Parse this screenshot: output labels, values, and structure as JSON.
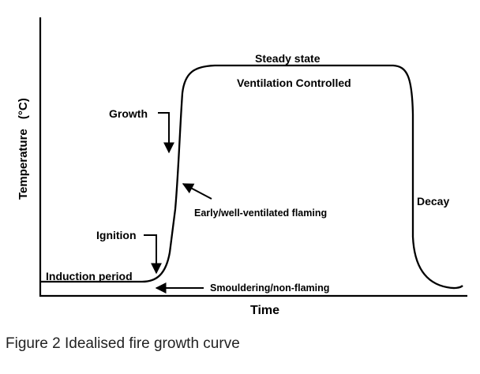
{
  "diagram": {
    "axes": {
      "y_label": "Temperature",
      "y_unit": "(°C)",
      "x_label": "Time"
    },
    "labels": {
      "steady_state": "Steady state",
      "ventilation_controlled": "Ventilation Controlled",
      "growth": "Growth",
      "early_flaming": "Early/well-ventilated flaming",
      "ignition": "Ignition",
      "induction_period": "Induction period",
      "smouldering": "Smouldering/non-flaming",
      "decay": "Decay"
    }
  },
  "caption": "Figure 2  Idealised fire growth curve"
}
